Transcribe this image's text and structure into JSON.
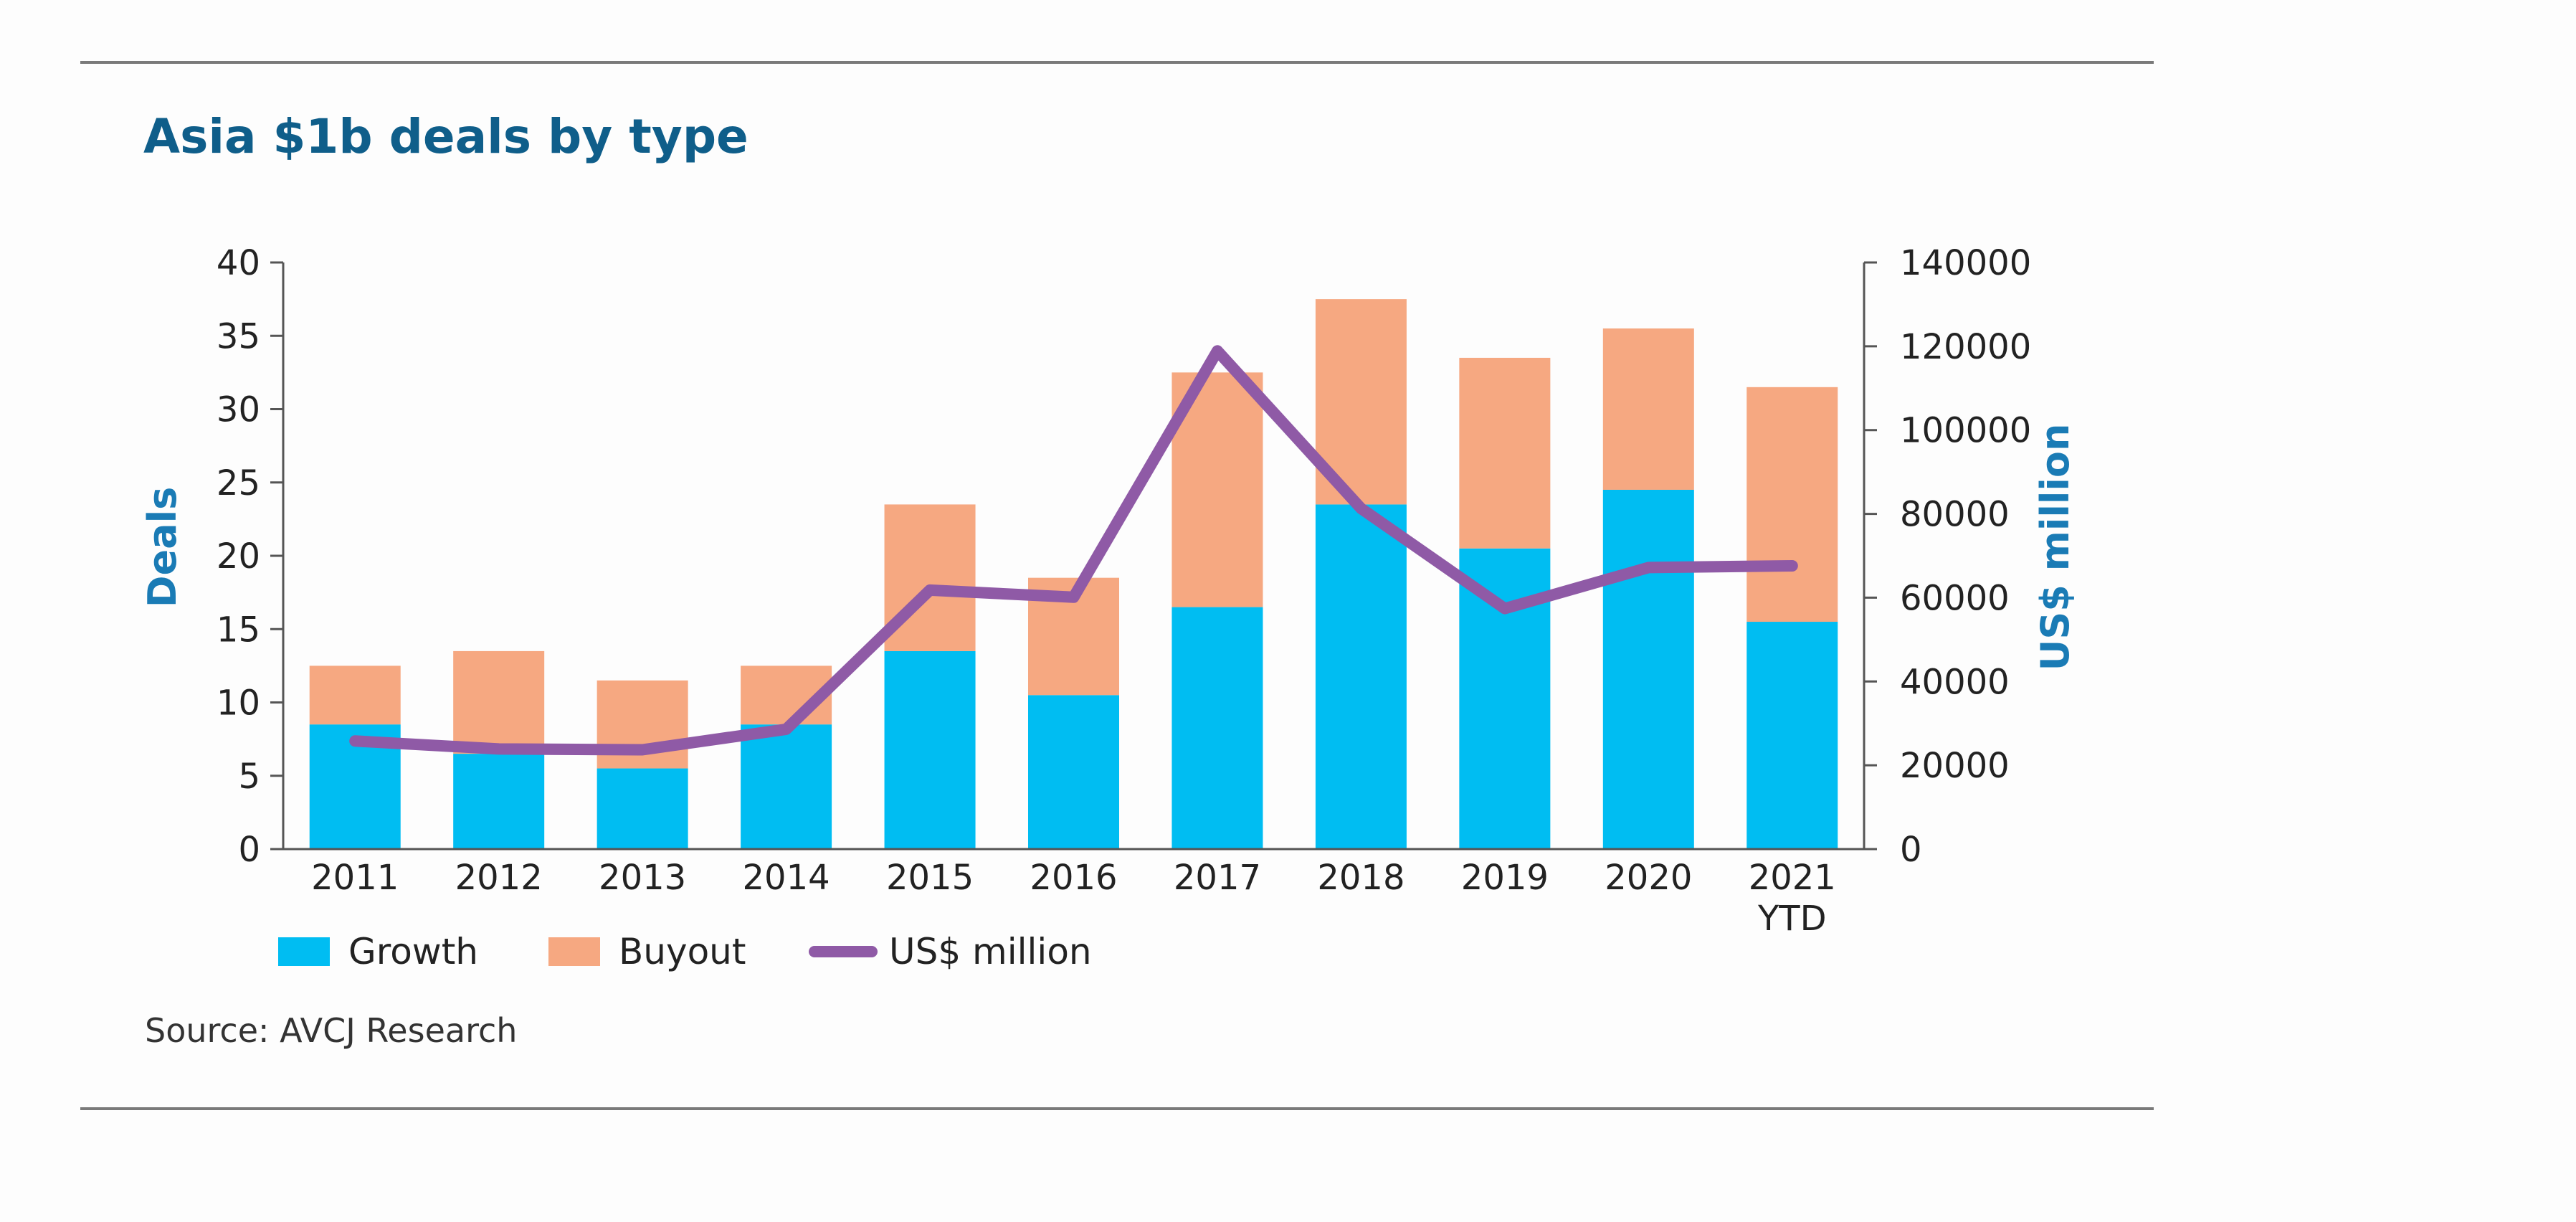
{
  "chart_data": {
    "type": "bar",
    "title": "Asia $1b deals by type",
    "stacked": true,
    "categories": [
      [
        "2011"
      ],
      [
        "2012"
      ],
      [
        "2013"
      ],
      [
        "2014"
      ],
      [
        "2015"
      ],
      [
        "2016"
      ],
      [
        "2017"
      ],
      [
        "2018"
      ],
      [
        "2019"
      ],
      [
        "2020"
      ],
      [
        "2021",
        "YTD"
      ]
    ],
    "series": [
      {
        "name": "Growth",
        "type": "bar",
        "axis": "left",
        "color": "#00bdf2",
        "values": [
          8.5,
          6.5,
          5.5,
          8.5,
          13.5,
          10.5,
          16.5,
          23.5,
          20.5,
          24.5,
          15.5
        ]
      },
      {
        "name": "Buyout",
        "type": "bar",
        "axis": "left",
        "color": "#f6a881",
        "values": [
          4,
          7,
          6,
          4,
          10,
          8,
          16,
          14,
          13,
          11,
          16
        ]
      },
      {
        "name": "US$ million",
        "type": "line",
        "axis": "right",
        "color": "#8f5aa6",
        "values": [
          25800,
          23900,
          23700,
          28600,
          61800,
          60100,
          118900,
          81300,
          57400,
          67200,
          67600
        ]
      }
    ],
    "ylabel": "Deals",
    "ylim": [
      0,
      40
    ],
    "yticks": [
      "0",
      "5",
      "10",
      "15",
      "20",
      "25",
      "30",
      "35",
      "40"
    ],
    "y2label": "US$ million",
    "y2lim": [
      0,
      140000
    ],
    "y2ticks": [
      "0",
      "20000",
      "40000",
      "60000",
      "80000",
      "100000",
      "120000",
      "140000"
    ],
    "legend_position": "bottom-left",
    "grid": false
  },
  "source": "Source: AVCJ Research",
  "colors": {
    "title": "#0f5e8a",
    "axis_title": "#1a7bb5",
    "text": "#222222",
    "axis": "#555555",
    "rule": "#7a7a7a"
  }
}
